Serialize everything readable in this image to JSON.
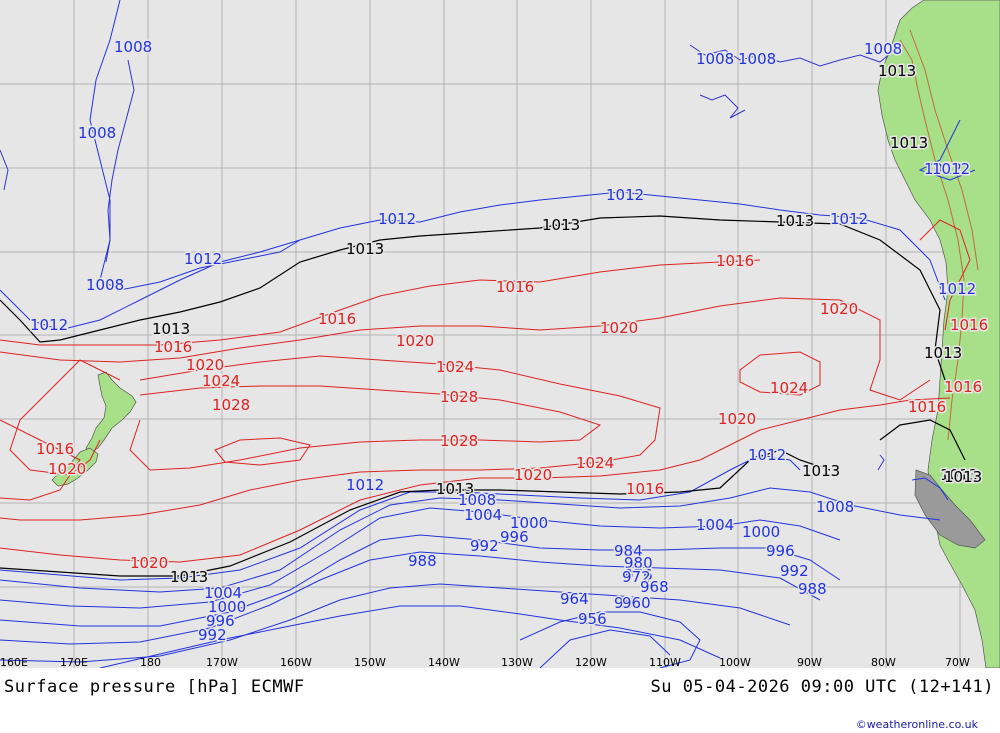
{
  "map": {
    "title": "Surface pressure [hPa] ECMWF",
    "valid_time": "Su 05-04-2026 09:00 UTC (12+141)",
    "credit": "©weatheronline.co.uk",
    "colors": {
      "ocean": "#e6e6e6",
      "land": "#a8e08a",
      "grid": "#b4b4b4",
      "isobar_low": "#2233dd",
      "isobar_high": "#dd2222",
      "isobar_1013": "#000000",
      "coast": "#3333cc"
    },
    "lon_labels": [
      "160E",
      "170E",
      "180",
      "170W",
      "160W",
      "150W",
      "140W",
      "130W",
      "120W",
      "110W",
      "100W",
      "90W",
      "80W",
      "70W"
    ],
    "isobar_labels": [
      {
        "text": "1008",
        "tone": "low"
      },
      {
        "text": "1008",
        "tone": "low"
      },
      {
        "text": "1008",
        "tone": "low"
      },
      {
        "text": "1008",
        "tone": "low"
      },
      {
        "text": "1008",
        "tone": "low"
      },
      {
        "text": "1008",
        "tone": "low"
      },
      {
        "text": "1012",
        "tone": "low"
      },
      {
        "text": "1012",
        "tone": "low"
      },
      {
        "text": "1012",
        "tone": "low"
      },
      {
        "text": "1012",
        "tone": "low"
      },
      {
        "text": "1012",
        "tone": "low"
      },
      {
        "text": "1012",
        "tone": "low"
      },
      {
        "text": "1012",
        "tone": "low"
      },
      {
        "text": "1012",
        "tone": "low"
      },
      {
        "text": "1013",
        "tone": "mid"
      },
      {
        "text": "1013",
        "tone": "mid"
      },
      {
        "text": "1013",
        "tone": "mid"
      },
      {
        "text": "1013",
        "tone": "mid"
      },
      {
        "text": "1013",
        "tone": "mid"
      },
      {
        "text": "1013",
        "tone": "mid"
      },
      {
        "text": "1013",
        "tone": "mid"
      },
      {
        "text": "1013",
        "tone": "mid"
      },
      {
        "text": "1013",
        "tone": "mid"
      },
      {
        "text": "1013",
        "tone": "mid"
      },
      {
        "text": "1013",
        "tone": "mid"
      },
      {
        "text": "1016",
        "tone": "high"
      },
      {
        "text": "1016",
        "tone": "high"
      },
      {
        "text": "1016",
        "tone": "high"
      },
      {
        "text": "1016",
        "tone": "high"
      },
      {
        "text": "1016",
        "tone": "high"
      },
      {
        "text": "1016",
        "tone": "high"
      },
      {
        "text": "1016",
        "tone": "high"
      },
      {
        "text": "1016",
        "tone": "high"
      },
      {
        "text": "1016",
        "tone": "high"
      },
      {
        "text": "1020",
        "tone": "high"
      },
      {
        "text": "1020",
        "tone": "high"
      },
      {
        "text": "1020",
        "tone": "high"
      },
      {
        "text": "1020",
        "tone": "high"
      },
      {
        "text": "1020",
        "tone": "high"
      },
      {
        "text": "1020",
        "tone": "high"
      },
      {
        "text": "1020",
        "tone": "high"
      },
      {
        "text": "1020",
        "tone": "high"
      },
      {
        "text": "1024",
        "tone": "high"
      },
      {
        "text": "1024",
        "tone": "high"
      },
      {
        "text": "1024",
        "tone": "high"
      },
      {
        "text": "1024",
        "tone": "high"
      },
      {
        "text": "1028",
        "tone": "high"
      },
      {
        "text": "1028",
        "tone": "high"
      },
      {
        "text": "1028",
        "tone": "high"
      },
      {
        "text": "1008",
        "tone": "low"
      },
      {
        "text": "1008",
        "tone": "low"
      },
      {
        "text": "1004",
        "tone": "low"
      },
      {
        "text": "1004",
        "tone": "low"
      },
      {
        "text": "1004",
        "tone": "low"
      },
      {
        "text": "1000",
        "tone": "low"
      },
      {
        "text": "1000",
        "tone": "low"
      },
      {
        "text": "1000",
        "tone": "low"
      },
      {
        "text": "996",
        "tone": "low"
      },
      {
        "text": "996",
        "tone": "low"
      },
      {
        "text": "996",
        "tone": "low"
      },
      {
        "text": "992",
        "tone": "low"
      },
      {
        "text": "992",
        "tone": "low"
      },
      {
        "text": "992",
        "tone": "low"
      },
      {
        "text": "988",
        "tone": "low"
      },
      {
        "text": "988",
        "tone": "low"
      },
      {
        "text": "988",
        "tone": "low"
      },
      {
        "text": "984",
        "tone": "low"
      },
      {
        "text": "980",
        "tone": "low"
      },
      {
        "text": "976",
        "tone": "low"
      },
      {
        "text": "972",
        "tone": "low"
      },
      {
        "text": "968",
        "tone": "low"
      },
      {
        "text": "964",
        "tone": "low"
      },
      {
        "text": "960",
        "tone": "low"
      },
      {
        "text": "956",
        "tone": "low"
      },
      {
        "text": "1012",
        "tone": "low"
      },
      {
        "text": "1012",
        "tone": "low"
      },
      {
        "text": "1013",
        "tone": "mid"
      }
    ]
  }
}
